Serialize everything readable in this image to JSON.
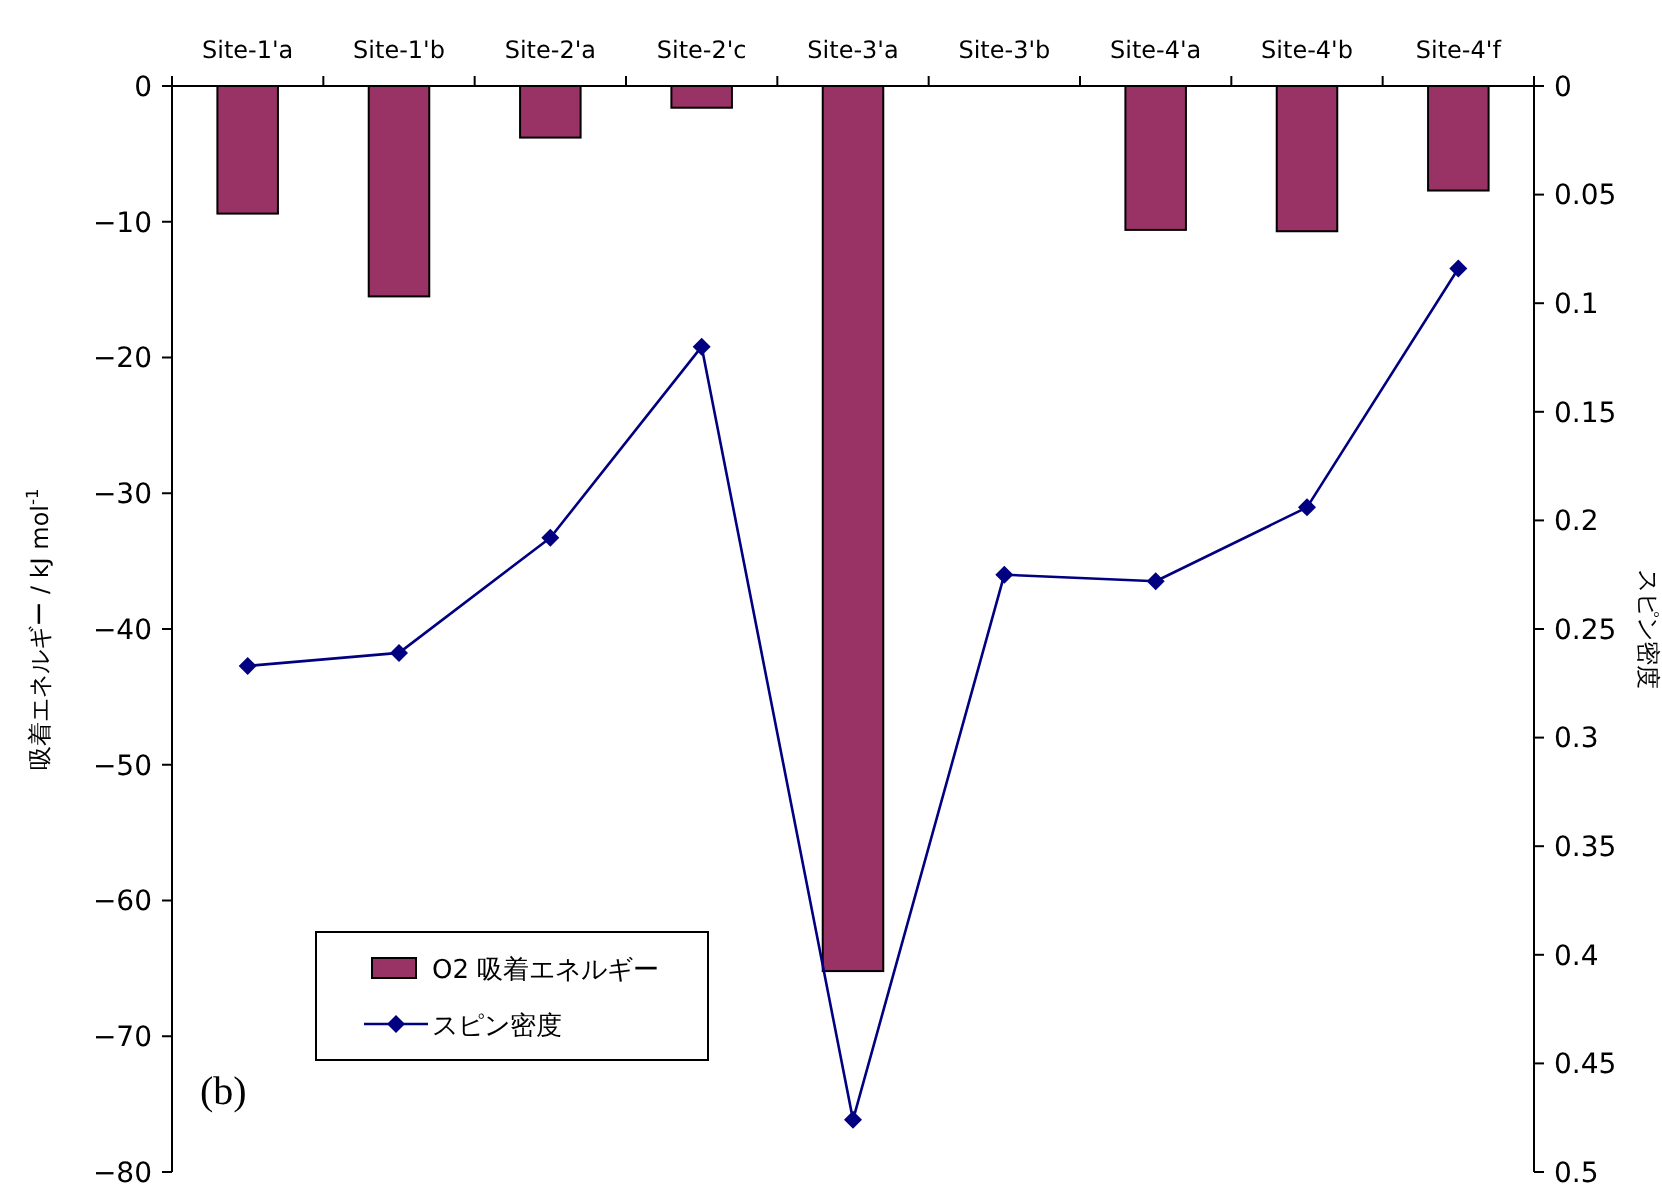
{
  "chart_data": {
    "type": "bar",
    "categories": [
      "Site-1'a",
      "Site-1'b",
      "Site-2'a",
      "Site-2'c",
      "Site-3'a",
      "Site-3'b",
      "Site-4'a",
      "Site-4'b",
      "Site-4'f"
    ],
    "ylabel": "吸着エネルギー / kJ mol$^{-1}$",
    "y2label": "スピン密度",
    "ylim": [
      -80,
      0
    ],
    "yticks": [
      -80,
      -70,
      -60,
      -50,
      -40,
      -30,
      -20,
      -10,
      0
    ],
    "y2lim": [
      0.5,
      0
    ],
    "y2ticks": [
      0,
      0.05,
      0.1,
      0.15,
      0.2,
      0.25,
      0.3,
      0.35,
      0.4,
      0.45,
      0.5
    ],
    "series": [
      {
        "name": "O2 吸着エネルギー",
        "color": "#993366",
        "values": [
          -9.4,
          -15.5,
          -3.8,
          -1.6,
          -65.2,
          null,
          -10.6,
          -10.7,
          -7.7
        ]
      },
      {
        "name": "スピン密度",
        "type": "line",
        "axis": "y2",
        "color": "#000080",
        "marker": "diamond",
        "values": [
          0.267,
          0.261,
          0.208,
          0.12,
          0.476,
          0.225,
          0.228,
          0.194,
          0.084
        ]
      }
    ],
    "legend": "bottom left",
    "grid": false,
    "annotations": [
      "(b)"
    ]
  }
}
